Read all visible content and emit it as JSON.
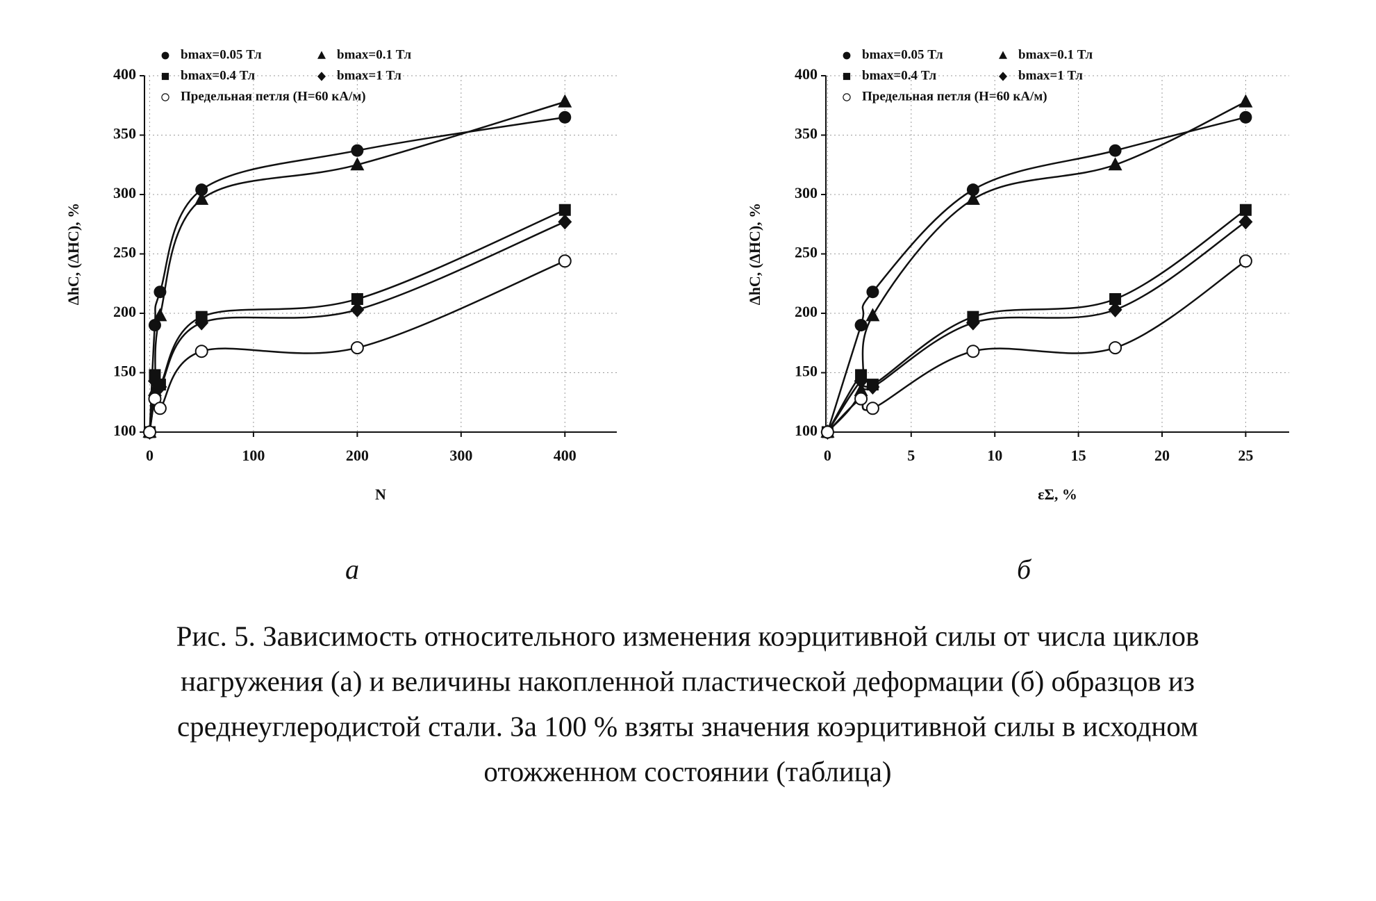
{
  "chart_data": [
    {
      "type": "scatter",
      "label": "а",
      "xlabel": "N",
      "ylabel": "ΔhC, (ΔHC), %",
      "x": [
        0,
        5,
        10,
        50,
        200,
        400
      ],
      "series": [
        {
          "name": "bmax=0.05 Тл",
          "color": "#111111",
          "marker": "circle",
          "values": [
            100,
            190,
            218,
            304,
            337,
            365
          ]
        },
        {
          "name": "bmax=0.1 Тл",
          "color": "#111111",
          "marker": "triangle",
          "values": [
            100,
            135,
            198,
            296,
            325,
            378
          ]
        },
        {
          "name": "bmax=0.4 Тл",
          "color": "#111111",
          "marker": "square",
          "values": [
            100,
            148,
            140,
            197,
            212,
            287
          ]
        },
        {
          "name": "bmax=1 Тл",
          "color": "#111111",
          "marker": "diamond",
          "values": [
            100,
            143,
            138,
            192,
            203,
            277
          ]
        },
        {
          "name": "Предельная петля (H=60 кА/м)",
          "color": "#111111",
          "marker": "open-circle",
          "values": [
            100,
            128,
            120,
            168,
            171,
            244
          ]
        }
      ],
      "xlim": [
        -5,
        450
      ],
      "xticks": [
        0,
        100,
        200,
        300,
        400
      ],
      "ylim": [
        100,
        400
      ],
      "yticks": [
        100,
        150,
        200,
        250,
        300,
        350,
        400
      ],
      "grid": true,
      "legend": "top-left"
    },
    {
      "type": "scatter",
      "label": "б",
      "xlabel": "εΣ, %",
      "ylabel": "ΔhC, (ΔHC), %",
      "x": [
        0,
        2,
        2.7,
        8.7,
        17.2,
        25
      ],
      "series": [
        {
          "name": "bmax=0.05 Тл",
          "color": "#111111",
          "marker": "circle",
          "values": [
            100,
            190,
            218,
            304,
            337,
            365
          ]
        },
        {
          "name": "bmax=0.1 Тл",
          "color": "#111111",
          "marker": "triangle",
          "values": [
            100,
            135,
            198,
            296,
            325,
            378
          ]
        },
        {
          "name": "bmax=0.4 Тл",
          "color": "#111111",
          "marker": "square",
          "values": [
            100,
            148,
            140,
            197,
            212,
            287
          ]
        },
        {
          "name": "bmax=1 Тл",
          "color": "#111111",
          "marker": "diamond",
          "values": [
            100,
            143,
            138,
            192,
            203,
            277
          ]
        },
        {
          "name": "Предельная петля (H=60 кА/м)",
          "color": "#111111",
          "marker": "open-circle",
          "values": [
            100,
            128,
            120,
            168,
            171,
            244
          ]
        }
      ],
      "xlim": [
        -0.1,
        27.6
      ],
      "xticks": [
        0,
        5,
        10,
        15,
        20,
        25
      ],
      "ylim": [
        100,
        400
      ],
      "yticks": [
        100,
        150,
        200,
        250,
        300,
        350,
        400
      ],
      "grid": true,
      "legend": "top-left"
    }
  ],
  "figure": {
    "caption_lines": [
      "Рис. 5. Зависимость относительного изменения коэрцитивной силы от числа циклов",
      "нагружения (а) и величины накопленной пластической деформации (б) образцов из",
      "среднеуглеродистой стали. За 100 % взяты значения коэрцитивной силы в исходном",
      "отожженном состоянии (таблица)"
    ]
  }
}
